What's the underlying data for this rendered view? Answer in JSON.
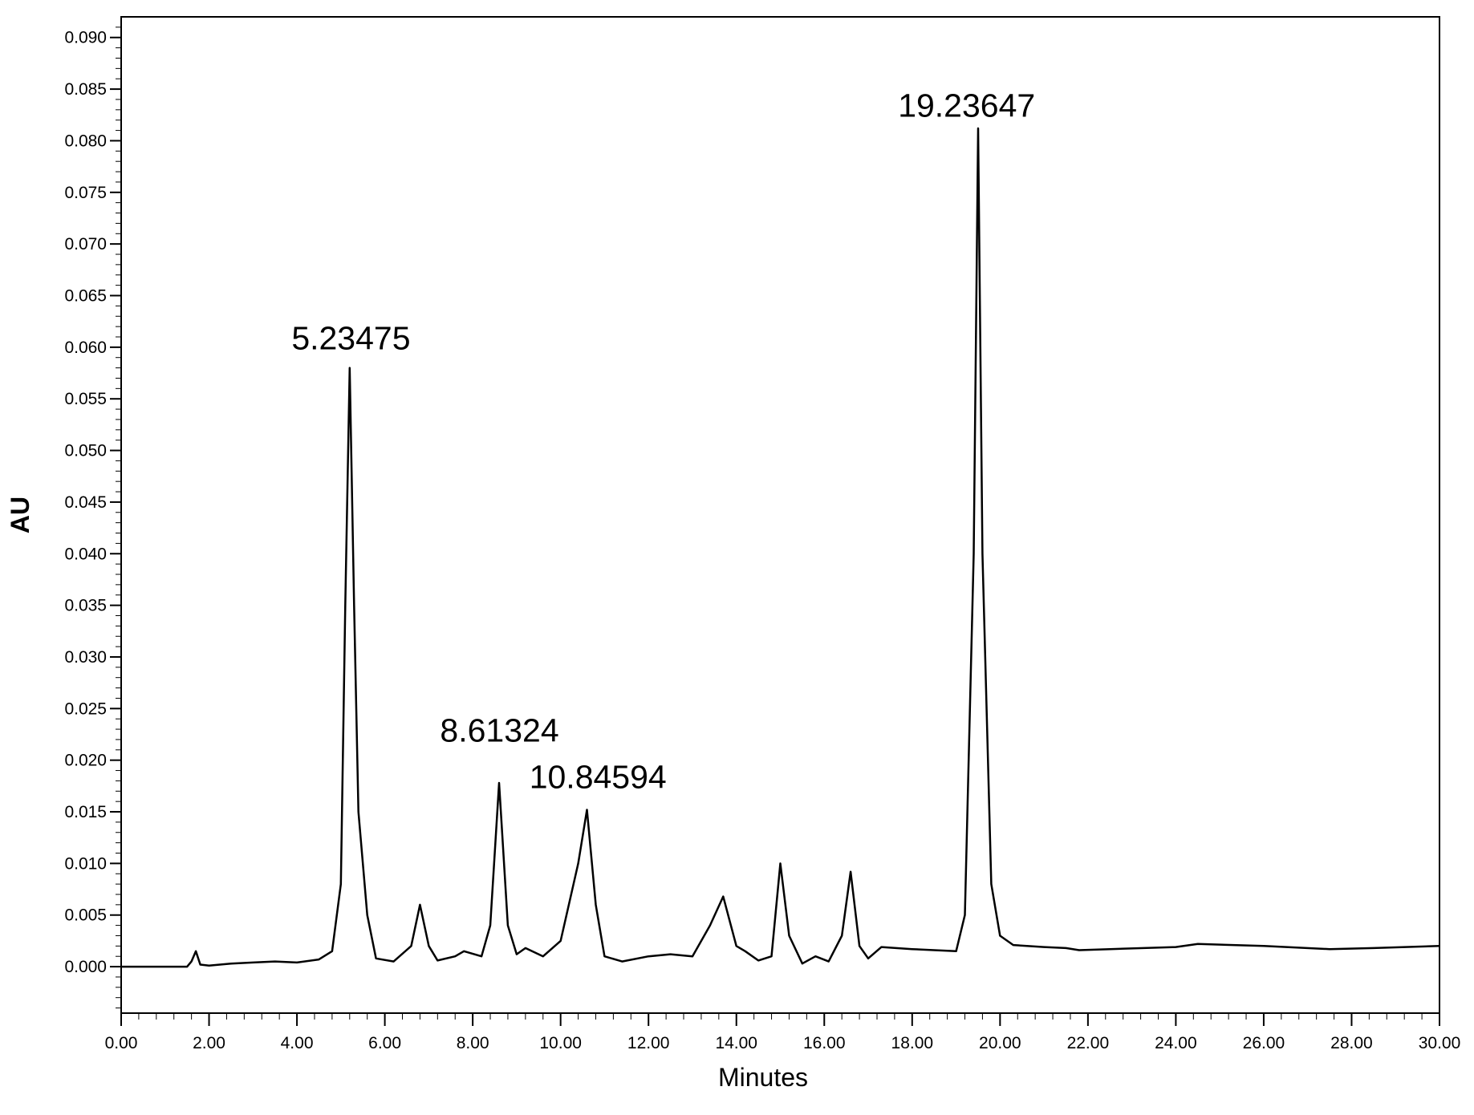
{
  "chart_data": {
    "type": "line",
    "title": "",
    "xlabel": "Minutes",
    "ylabel": "AU",
    "xlim": [
      0,
      30
    ],
    "ylim": [
      -0.0045,
      0.092
    ],
    "xticks": [
      "0.00",
      "2.00",
      "4.00",
      "6.00",
      "8.00",
      "10.00",
      "12.00",
      "14.00",
      "16.00",
      "18.00",
      "20.00",
      "22.00",
      "24.00",
      "26.00",
      "28.00",
      "30.00"
    ],
    "yticks": [
      "0.000",
      "0.005",
      "0.010",
      "0.015",
      "0.020",
      "0.025",
      "0.030",
      "0.035",
      "0.040",
      "0.045",
      "0.050",
      "0.055",
      "0.060",
      "0.065",
      "0.070",
      "0.075",
      "0.080",
      "0.085",
      "0.090"
    ],
    "grid": false,
    "line_color": "#000000",
    "peak_labels": [
      {
        "text": "5.23475",
        "x": 5.23,
        "y": 0.0595
      },
      {
        "text": "8.61324",
        "x": 8.61,
        "y": 0.0215
      },
      {
        "text": "10.84594",
        "x": 10.85,
        "y": 0.017
      },
      {
        "text": "19.23647",
        "x": 19.24,
        "y": 0.082
      }
    ],
    "series": [
      {
        "x": [
          0,
          1.5,
          1.6,
          1.7,
          1.8,
          2.0,
          2.5,
          3.0,
          3.5,
          4.0,
          4.5,
          4.8,
          5.0,
          5.1,
          5.2,
          5.3,
          5.4,
          5.6,
          5.8,
          6.2,
          6.6,
          6.8,
          7.0,
          7.2,
          7.6,
          7.8,
          8.2,
          8.4,
          8.6,
          8.8,
          9.0,
          9.2,
          9.6,
          10.0,
          10.4,
          10.6,
          10.8,
          11.0,
          11.4,
          12.0,
          12.5,
          13.0,
          13.4,
          13.7,
          14.0,
          14.2,
          14.5,
          14.8,
          15.0,
          15.2,
          15.5,
          15.8,
          16.1,
          16.4,
          16.6,
          16.8,
          17.0,
          17.3,
          18.0,
          18.5,
          19.0,
          19.2,
          19.4,
          19.5,
          19.6,
          19.8,
          20.0,
          20.3,
          21.0,
          21.5,
          21.8,
          22.5,
          24.0,
          24.5,
          26.0,
          27.5,
          28.5,
          30.0
        ],
        "y": [
          0.0,
          0.0,
          0.0005,
          0.0015,
          0.0002,
          0.0001,
          0.0003,
          0.0004,
          0.0005,
          0.0004,
          0.0007,
          0.0015,
          0.008,
          0.035,
          0.058,
          0.035,
          0.015,
          0.005,
          0.0008,
          0.0005,
          0.002,
          0.006,
          0.002,
          0.0006,
          0.001,
          0.0015,
          0.001,
          0.004,
          0.0178,
          0.004,
          0.0012,
          0.0018,
          0.001,
          0.0025,
          0.01,
          0.0152,
          0.006,
          0.001,
          0.0005,
          0.001,
          0.0012,
          0.001,
          0.004,
          0.0068,
          0.002,
          0.0015,
          0.0006,
          0.001,
          0.01,
          0.003,
          0.0003,
          0.001,
          0.0005,
          0.003,
          0.0092,
          0.002,
          0.0008,
          0.0019,
          0.0017,
          0.0016,
          0.0015,
          0.005,
          0.04,
          0.0812,
          0.04,
          0.008,
          0.003,
          0.0021,
          0.0019,
          0.0018,
          0.0016,
          0.0017,
          0.0019,
          0.0022,
          0.002,
          0.0017,
          0.0018,
          0.002
        ]
      }
    ]
  }
}
